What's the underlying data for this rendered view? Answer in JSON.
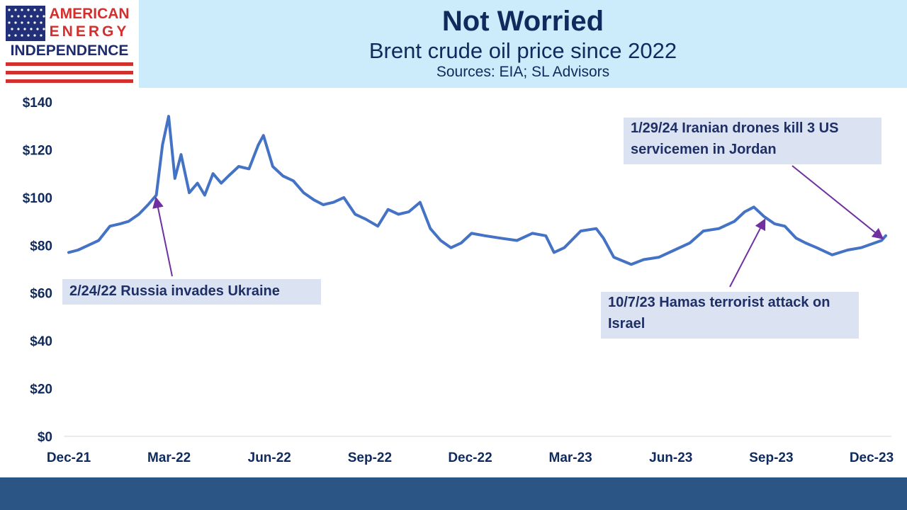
{
  "logo": {
    "line1": "AMERICAN",
    "line2": "ENERGY",
    "line3": "INDEPENDENCE"
  },
  "header": {
    "title": "Not Worried",
    "subtitle": "Brent crude oil price since 2022",
    "sources": "Sources: EIA; SL Advisors"
  },
  "colors": {
    "line": "#4472c4",
    "arrow": "#7030a0",
    "header_bg": "#ccebfb",
    "footer_bg": "#2a5585",
    "annotation_bg": "#dbe3f3",
    "text": "#0f2a5c"
  },
  "chart_data": {
    "type": "line",
    "title": "Brent crude oil price since 2022",
    "ylim": [
      0,
      140
    ],
    "y_ticks": [
      "$0",
      "$20",
      "$40",
      "$60",
      "$80",
      "$100",
      "$120",
      "$140"
    ],
    "x_ticks": [
      "Dec-21",
      "Mar-22",
      "Jun-22",
      "Sep-22",
      "Dec-22",
      "Mar-23",
      "Jun-23",
      "Sep-23",
      "Dec-23"
    ],
    "x_range": [
      "2021-12-01",
      "2024-02-02"
    ],
    "grid": false,
    "series": [
      {
        "name": "",
        "x": [
          "2021-12-01",
          "2021-12-10",
          "2021-12-20",
          "2021-12-30",
          "2022-01-10",
          "2022-01-20",
          "2022-01-28",
          "2022-02-07",
          "2022-02-16",
          "2022-02-24",
          "2022-03-02",
          "2022-03-08",
          "2022-03-14",
          "2022-03-20",
          "2022-03-28",
          "2022-04-05",
          "2022-04-12",
          "2022-04-20",
          "2022-04-28",
          "2022-05-05",
          "2022-05-15",
          "2022-05-25",
          "2022-06-03",
          "2022-06-08",
          "2022-06-17",
          "2022-06-27",
          "2022-07-07",
          "2022-07-17",
          "2022-07-27",
          "2022-08-05",
          "2022-08-15",
          "2022-08-25",
          "2022-09-05",
          "2022-09-15",
          "2022-09-27",
          "2022-10-07",
          "2022-10-17",
          "2022-10-27",
          "2022-11-07",
          "2022-11-17",
          "2022-11-27",
          "2022-12-07",
          "2022-12-17",
          "2022-12-27",
          "2023-01-09",
          "2023-01-24",
          "2023-02-09",
          "2023-02-24",
          "2023-03-09",
          "2023-03-17",
          "2023-03-27",
          "2023-04-12",
          "2023-04-27",
          "2023-05-04",
          "2023-05-14",
          "2023-05-31",
          "2023-06-12",
          "2023-06-27",
          "2023-07-12",
          "2023-07-27",
          "2023-08-09",
          "2023-08-24",
          "2023-09-08",
          "2023-09-18",
          "2023-09-27",
          "2023-10-07",
          "2023-10-17",
          "2023-10-27",
          "2023-11-07",
          "2023-11-16",
          "2023-11-27",
          "2023-12-12",
          "2023-12-27",
          "2024-01-09",
          "2024-01-29",
          "2024-02-02"
        ],
        "values": [
          77,
          78,
          80,
          82,
          88,
          89,
          90,
          93,
          97,
          101,
          122,
          134,
          108,
          118,
          102,
          106,
          101,
          110,
          106,
          109,
          113,
          112,
          122,
          126,
          113,
          109,
          107,
          102,
          99,
          97,
          98,
          100,
          93,
          91,
          88,
          95,
          93,
          94,
          98,
          87,
          82,
          79,
          81,
          85,
          84,
          83,
          82,
          85,
          84,
          77,
          79,
          86,
          87,
          83,
          75,
          72,
          74,
          75,
          78,
          81,
          86,
          87,
          90,
          94,
          96,
          92,
          89,
          88,
          83,
          81,
          79,
          76,
          78,
          79,
          82,
          84
        ]
      }
    ],
    "annotations": [
      {
        "text": "2/24/22 Russia invades Ukraine",
        "date": "2022-02-24",
        "value": 101
      },
      {
        "text": "10/7/23 Hamas terrorist attack on Israel",
        "date": "2023-10-07",
        "value": 92
      },
      {
        "text": "1/29/24 Iranian drones kill 3 US servicemen in Jordan",
        "date": "2024-01-29",
        "value": 82
      }
    ]
  }
}
